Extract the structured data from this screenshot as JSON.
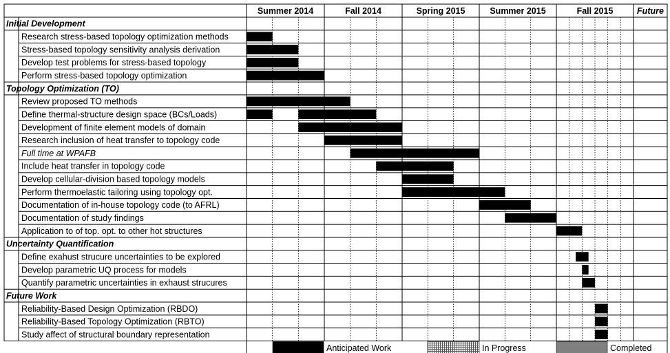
{
  "chart_data": {
    "type": "gantt",
    "periods": [
      {
        "label": "Summer 2014",
        "subcolumns": 3
      },
      {
        "label": "Fall 2014",
        "subcolumns": 3
      },
      {
        "label": "Spring 2015",
        "subcolumns": 3
      },
      {
        "label": "Summer 2015",
        "subcolumns": 3
      },
      {
        "label": "Fall 2015",
        "subcolumns": 6
      },
      {
        "label": "Future",
        "subcolumns": 1,
        "italic": true
      }
    ],
    "sections": [
      {
        "title": "Initial Development",
        "tasks": [
          {
            "label": "Research stress-based topology optimization methods",
            "bars": [
              {
                "start": 0,
                "end": 1
              }
            ]
          },
          {
            "label": "Stress-based topology sensitivity analysis derivation",
            "bars": [
              {
                "start": 0,
                "end": 2
              }
            ]
          },
          {
            "label": "Develop test problems for stress-based topology",
            "bars": [
              {
                "start": 0,
                "end": 2
              }
            ]
          },
          {
            "label": "Perform stress-based topology optimization",
            "bars": [
              {
                "start": 0,
                "end": 3
              }
            ]
          }
        ]
      },
      {
        "title": "Topology Optimization (TO)",
        "tasks": [
          {
            "label": "Review proposed TO methods",
            "bars": [
              {
                "start": 0,
                "end": 4
              }
            ]
          },
          {
            "label": "Define thermal-structure design space (BCs/Loads)",
            "bars": [
              {
                "start": 0,
                "end": 1
              },
              {
                "start": 2,
                "end": 5
              }
            ]
          },
          {
            "label": "Development of finite element models of domain",
            "bars": [
              {
                "start": 2,
                "end": 6
              }
            ]
          },
          {
            "label": "Research inclusion of heat transfer to topology code",
            "bars": [
              {
                "start": 3,
                "end": 6
              }
            ]
          },
          {
            "label": "Full time at WPAFB",
            "italic": true,
            "bars": [
              {
                "start": 4,
                "end": 9
              }
            ]
          },
          {
            "label": "Include heat transfer in topology code",
            "bars": [
              {
                "start": 5,
                "end": 8
              }
            ]
          },
          {
            "label": "Develop cellular-division based topology models",
            "bars": [
              {
                "start": 6,
                "end": 8
              }
            ]
          },
          {
            "label": "Perform thermoelastic tailoring using topology opt.",
            "bars": [
              {
                "start": 6,
                "end": 10
              }
            ]
          },
          {
            "label": "Documentation of in-house topology code (to AFRL)",
            "bars": [
              {
                "start": 9,
                "end": 11
              }
            ]
          },
          {
            "label": "Documentation of study findings",
            "bars": [
              {
                "start": 10,
                "end": 12
              }
            ]
          },
          {
            "label": "Application to of top. opt. to other hot structures",
            "bars": [
              {
                "start": 12,
                "end": 14
              }
            ]
          }
        ]
      },
      {
        "title": "Uncertainty Quantification",
        "tasks": [
          {
            "label": "Define exahust strucure uncertainties to be explored",
            "bars": [
              {
                "start": 13.5,
                "end": 14.5
              }
            ]
          },
          {
            "label": "Develop parametric UQ process for models",
            "bars": [
              {
                "start": 14,
                "end": 14.5
              }
            ]
          },
          {
            "label": "Quantify parametric uncertainties in exhaust strucures",
            "bars": [
              {
                "start": 14,
                "end": 15
              }
            ]
          }
        ]
      },
      {
        "title": "Future Work",
        "tasks": [
          {
            "label": "Reliability-Based Design Optimization (RBDO)",
            "bars": [
              {
                "start": 15,
                "end": 16
              }
            ]
          },
          {
            "label": "Reliability-Based Topology Optimization (RBTO)",
            "bars": [
              {
                "start": 15,
                "end": 16
              }
            ]
          },
          {
            "label": "Study affect of structural boundary representation",
            "bars": [
              {
                "start": 15,
                "end": 16
              }
            ]
          }
        ]
      }
    ],
    "legend": [
      {
        "label": "Anticipated Work",
        "fill": "#000000",
        "pattern": "solid"
      },
      {
        "label": "In Progress",
        "fill": "#888888",
        "pattern": "crosshatch"
      },
      {
        "label": "Completed",
        "fill": "#808080",
        "pattern": "solid"
      }
    ]
  },
  "colors": {
    "bar": "#000000",
    "grid": "#000000",
    "background": "#ffffff"
  }
}
